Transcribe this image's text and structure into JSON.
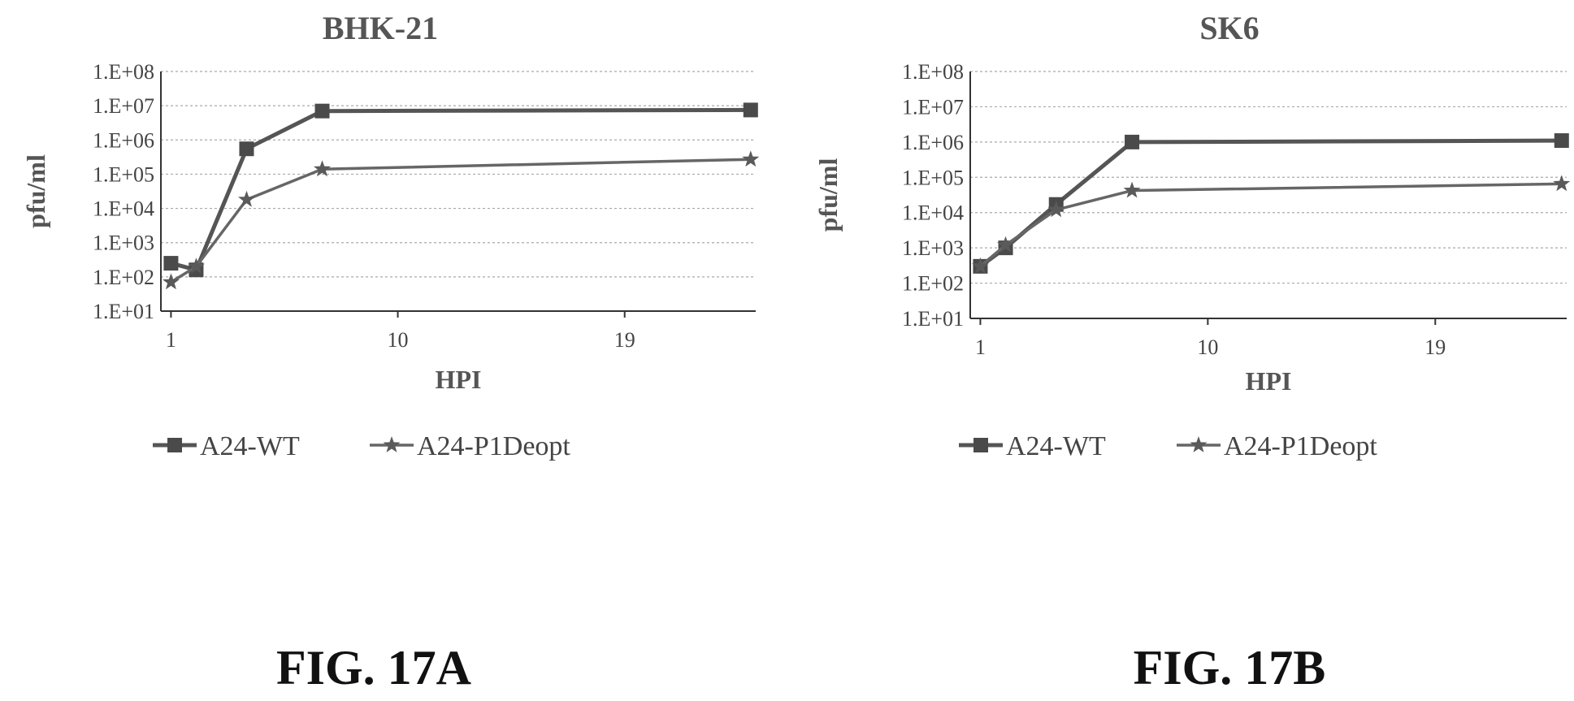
{
  "chart_data": [
    {
      "type": "line",
      "title": "BHK-21",
      "xlabel": "HPI",
      "ylabel": "pfu/ml",
      "x_ticks": [
        "1",
        "10",
        "19"
      ],
      "y_ticks": [
        "1.E+01",
        "1.E+02",
        "1.E+03",
        "1.E+04",
        "1.E+05",
        "1.E+06",
        "1.E+07",
        "1.E+08"
      ],
      "yscale": "log",
      "xlim": [
        0.6,
        24.2
      ],
      "ylim": [
        10,
        100000000
      ],
      "grid": true,
      "legend_position": "bottom",
      "series": [
        {
          "name": "A24-WT",
          "marker": "square",
          "color": "#555555",
          "x": [
            1,
            2,
            4,
            7,
            24
          ],
          "y": [
            250,
            160,
            550000,
            7000000,
            7500000
          ]
        },
        {
          "name": "A24-P1Deopt",
          "marker": "star",
          "color": "#666666",
          "x": [
            1,
            2,
            4,
            7,
            24
          ],
          "y": [
            70,
            200,
            18000,
            140000,
            270000
          ]
        }
      ],
      "caption": "FIG. 17A"
    },
    {
      "type": "line",
      "title": "SK6",
      "xlabel": "HPI",
      "ylabel": "pfu/ml",
      "x_ticks": [
        "1",
        "10",
        "19"
      ],
      "y_ticks": [
        "1.E+01",
        "1.E+02",
        "1.E+03",
        "1.E+04",
        "1.E+05",
        "1.E+06",
        "1.E+07",
        "1.E+08"
      ],
      "yscale": "log",
      "xlim": [
        0.6,
        24.2
      ],
      "ylim": [
        10,
        100000000
      ],
      "grid": true,
      "legend_position": "bottom",
      "series": [
        {
          "name": "A24-WT",
          "marker": "square",
          "color": "#555555",
          "x": [
            1,
            2,
            4,
            7,
            24
          ],
          "y": [
            300,
            1000,
            17000,
            1000000,
            1100000
          ]
        },
        {
          "name": "A24-P1Deopt",
          "marker": "star",
          "color": "#666666",
          "x": [
            1,
            2,
            4,
            7,
            24
          ],
          "y": [
            300,
            1200,
            12000,
            42000,
            65000
          ]
        }
      ],
      "caption": "FIG. 17B"
    }
  ]
}
